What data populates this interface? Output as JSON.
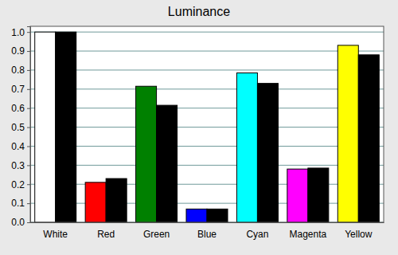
{
  "chart_data": {
    "type": "bar",
    "title": "Luminance",
    "categories": [
      "White",
      "Red",
      "Green",
      "Blue",
      "Cyan",
      "Magenta",
      "Yellow"
    ],
    "series": [
      {
        "colors": [
          "#ffffff",
          "#ff0000",
          "#008000",
          "#0000ff",
          "#00ffff",
          "#ff00ff",
          "#ffff00"
        ],
        "values": [
          1.0,
          0.21,
          0.715,
          0.07,
          0.785,
          0.28,
          0.93
        ]
      },
      {
        "color": "#000000",
        "values": [
          1.0,
          0.23,
          0.615,
          0.07,
          0.73,
          0.285,
          0.88
        ]
      }
    ],
    "ylim": [
      0,
      1.03
    ],
    "yticks": [
      {
        "value": 0,
        "label": "0.0"
      },
      0.1,
      0.2,
      0.3,
      0.4,
      0.5,
      0.6,
      0.7,
      0.8,
      0.9,
      {
        "value": 1,
        "label": "1.0"
      }
    ],
    "grid": true
  }
}
